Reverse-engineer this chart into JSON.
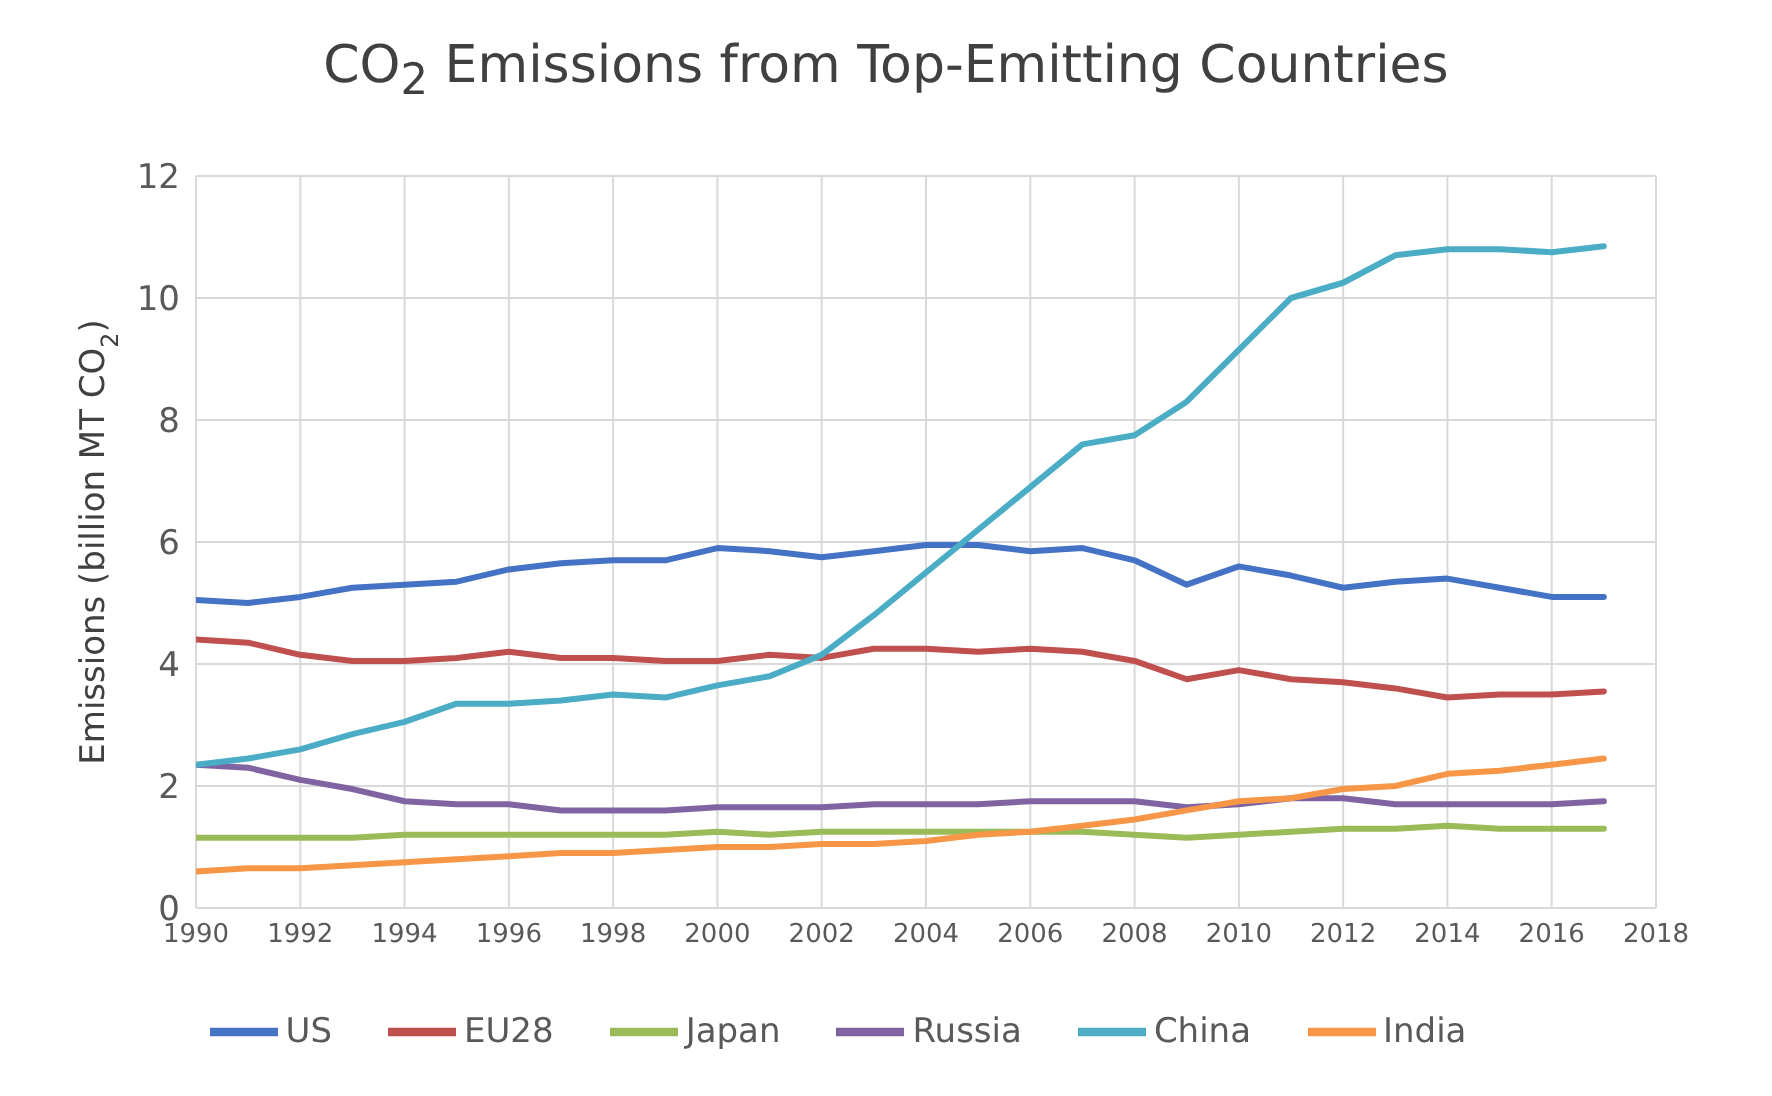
{
  "chart_data": {
    "type": "line",
    "title": "CO$_{2}$ Emissions from Top-Emitting Countries",
    "ylabel": "Emissions (billion MT CO$_{2}$)",
    "x": [
      1990,
      1991,
      1992,
      1993,
      1994,
      1995,
      1996,
      1997,
      1998,
      1999,
      2000,
      2001,
      2002,
      2003,
      2004,
      2005,
      2006,
      2007,
      2008,
      2009,
      2010,
      2011,
      2012,
      2013,
      2014,
      2015,
      2016,
      2017
    ],
    "xlim": [
      1990,
      2018
    ],
    "xticks": [
      1990,
      1992,
      1994,
      1996,
      1998,
      2000,
      2002,
      2004,
      2006,
      2008,
      2010,
      2012,
      2014,
      2016,
      2018
    ],
    "ylim": [
      0,
      12
    ],
    "yticks": [
      0,
      2,
      4,
      6,
      8,
      10,
      12
    ],
    "grid": true,
    "legend": "bottom",
    "marker": "none",
    "line_style": "solid",
    "series": [
      {
        "name": "US",
        "color": "#4472c4",
        "values": [
          5.05,
          5.0,
          5.1,
          5.25,
          5.3,
          5.35,
          5.55,
          5.65,
          5.7,
          5.7,
          5.9,
          5.85,
          5.75,
          5.85,
          5.95,
          5.95,
          5.85,
          5.9,
          5.7,
          5.3,
          5.6,
          5.45,
          5.25,
          5.35,
          5.4,
          5.25,
          5.1,
          5.1
        ]
      },
      {
        "name": "EU28",
        "color": "#c0504d",
        "values": [
          4.4,
          4.35,
          4.15,
          4.05,
          4.05,
          4.1,
          4.2,
          4.1,
          4.1,
          4.05,
          4.05,
          4.15,
          4.1,
          4.25,
          4.25,
          4.2,
          4.25,
          4.2,
          4.05,
          3.75,
          3.9,
          3.75,
          3.7,
          3.6,
          3.45,
          3.5,
          3.5,
          3.55
        ]
      },
      {
        "name": "Japan",
        "color": "#9bbb59",
        "values": [
          1.15,
          1.15,
          1.15,
          1.15,
          1.2,
          1.2,
          1.2,
          1.2,
          1.2,
          1.2,
          1.25,
          1.2,
          1.25,
          1.25,
          1.25,
          1.25,
          1.25,
          1.25,
          1.2,
          1.15,
          1.2,
          1.25,
          1.3,
          1.3,
          1.35,
          1.3,
          1.3,
          1.3
        ]
      },
      {
        "name": "Russia",
        "color": "#8064a2",
        "values": [
          2.35,
          2.3,
          2.1,
          1.95,
          1.75,
          1.7,
          1.7,
          1.6,
          1.6,
          1.6,
          1.65,
          1.65,
          1.65,
          1.7,
          1.7,
          1.7,
          1.75,
          1.75,
          1.75,
          1.65,
          1.7,
          1.8,
          1.8,
          1.7,
          1.7,
          1.7,
          1.7,
          1.75
        ]
      },
      {
        "name": "China",
        "color": "#4bacc6",
        "values": [
          2.35,
          2.45,
          2.6,
          2.85,
          3.05,
          3.35,
          3.35,
          3.4,
          3.5,
          3.45,
          3.65,
          3.8,
          4.15,
          4.8,
          5.5,
          6.2,
          6.9,
          7.6,
          7.75,
          8.3,
          9.15,
          10.0,
          10.25,
          10.7,
          10.8,
          10.8,
          10.75,
          10.85
        ]
      },
      {
        "name": "India",
        "color": "#f79646",
        "values": [
          0.6,
          0.65,
          0.65,
          0.7,
          0.75,
          0.8,
          0.85,
          0.9,
          0.9,
          0.95,
          1.0,
          1.0,
          1.05,
          1.05,
          1.1,
          1.2,
          1.25,
          1.35,
          1.45,
          1.6,
          1.75,
          1.8,
          1.95,
          2.0,
          2.2,
          2.25,
          2.35,
          2.45
        ]
      }
    ]
  }
}
